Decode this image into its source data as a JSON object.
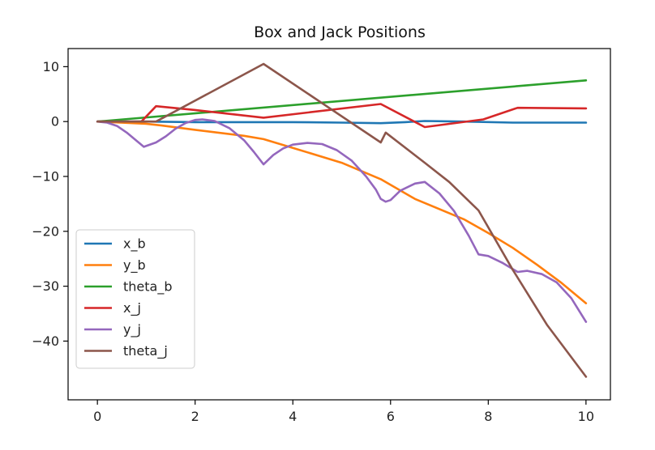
{
  "chart_data": {
    "type": "line",
    "title": "Box and Jack Positions",
    "xlabel": "",
    "ylabel": "",
    "xlim": [
      -0.6,
      10.5
    ],
    "ylim": [
      -50.7,
      13.3
    ],
    "xticks": [
      0,
      2,
      4,
      6,
      8,
      10
    ],
    "yticks": [
      10,
      0,
      -10,
      -20,
      -30,
      -40
    ],
    "xtick_labels": [
      "0",
      "2",
      "4",
      "6",
      "8",
      "10"
    ],
    "ytick_labels": [
      "10",
      "0",
      "−10",
      "−20",
      "−30",
      "−40"
    ],
    "grid": false,
    "legend_position": "lower-left",
    "series": [
      {
        "name": "x_b",
        "color": "#1f77b4",
        "points": [
          [
            0,
            0
          ],
          [
            1,
            0
          ],
          [
            2,
            -0.1
          ],
          [
            3,
            -0.1
          ],
          [
            4,
            -0.1
          ],
          [
            5,
            -0.2
          ],
          [
            5.8,
            -0.3
          ],
          [
            6.3,
            -0.1
          ],
          [
            6.7,
            0.1
          ],
          [
            7.5,
            0
          ],
          [
            8.5,
            -0.2
          ],
          [
            10,
            -0.2
          ]
        ]
      },
      {
        "name": "y_b",
        "color": "#ff7f0e",
        "points": [
          [
            0,
            0
          ],
          [
            1,
            -0.4
          ],
          [
            1.3,
            -0.7
          ],
          [
            2,
            -1.5
          ],
          [
            3,
            -2.6
          ],
          [
            3.4,
            -3.2
          ],
          [
            4,
            -4.8
          ],
          [
            5,
            -7.5
          ],
          [
            5.8,
            -10.5
          ],
          [
            6.5,
            -14.1
          ],
          [
            7.5,
            -17.8
          ],
          [
            8,
            -20.3
          ],
          [
            8.5,
            -23
          ],
          [
            9,
            -26.1
          ],
          [
            9.5,
            -29.4
          ],
          [
            10,
            -33.1
          ]
        ]
      },
      {
        "name": "theta_b",
        "color": "#2ca02c",
        "points": [
          [
            0,
            0
          ],
          [
            10,
            7.5
          ]
        ]
      },
      {
        "name": "x_j",
        "color": "#d62728",
        "points": [
          [
            0,
            0
          ],
          [
            0.9,
            0
          ],
          [
            1.2,
            2.8
          ],
          [
            2,
            2.1
          ],
          [
            3.4,
            0.7
          ],
          [
            5.8,
            3.2
          ],
          [
            6.7,
            -1
          ],
          [
            7.9,
            0.4
          ],
          [
            8.6,
            2.5
          ],
          [
            10,
            2.4
          ]
        ]
      },
      {
        "name": "y_j",
        "color": "#9467bd",
        "points": [
          [
            0,
            0
          ],
          [
            0.2,
            -0.2
          ],
          [
            0.4,
            -0.8
          ],
          [
            0.6,
            -2
          ],
          [
            0.8,
            -3.5
          ],
          [
            0.95,
            -4.6
          ],
          [
            1.2,
            -3.8
          ],
          [
            1.4,
            -2.7
          ],
          [
            1.6,
            -1.3
          ],
          [
            1.8,
            -0.3
          ],
          [
            2,
            0.3
          ],
          [
            2.15,
            0.4
          ],
          [
            2.4,
            0.1
          ],
          [
            2.7,
            -1.2
          ],
          [
            3,
            -3.4
          ],
          [
            3.2,
            -5.5
          ],
          [
            3.4,
            -7.8
          ],
          [
            3.6,
            -6.1
          ],
          [
            3.8,
            -4.9
          ],
          [
            4,
            -4.2
          ],
          [
            4.3,
            -3.9
          ],
          [
            4.6,
            -4.1
          ],
          [
            4.9,
            -5.2
          ],
          [
            5.2,
            -7.1
          ],
          [
            5.5,
            -10
          ],
          [
            5.7,
            -12.4
          ],
          [
            5.8,
            -14.1
          ],
          [
            5.9,
            -14.6
          ],
          [
            6.0,
            -14.3
          ],
          [
            6.2,
            -12.6
          ],
          [
            6.5,
            -11.3
          ],
          [
            6.7,
            -11
          ],
          [
            7.0,
            -13.1
          ],
          [
            7.3,
            -16.3
          ],
          [
            7.6,
            -20.8
          ],
          [
            7.8,
            -24.2
          ],
          [
            8.0,
            -24.5
          ],
          [
            8.3,
            -25.8
          ],
          [
            8.6,
            -27.4
          ],
          [
            8.8,
            -27.2
          ],
          [
            9.1,
            -27.8
          ],
          [
            9.4,
            -29.3
          ],
          [
            9.7,
            -32.2
          ],
          [
            10,
            -36.5
          ]
        ]
      },
      {
        "name": "theta_j",
        "color": "#8c564b",
        "points": [
          [
            0,
            0
          ],
          [
            1.2,
            0
          ],
          [
            3.4,
            10.5
          ],
          [
            5.8,
            -3.8
          ],
          [
            5.9,
            -2
          ],
          [
            6.7,
            -7.5
          ],
          [
            7.2,
            -11
          ],
          [
            7.8,
            -16.2
          ],
          [
            8.5,
            -27
          ],
          [
            9.2,
            -37
          ],
          [
            10,
            -46.5
          ]
        ]
      }
    ]
  }
}
